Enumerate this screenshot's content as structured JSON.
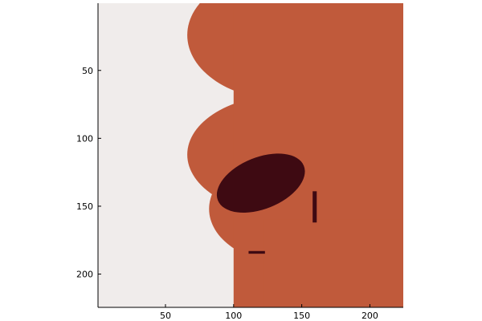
{
  "chart_data": {
    "type": "heatmap",
    "title": "",
    "xlabel": "",
    "ylabel": "",
    "xlim": [
      0.5,
      224.5
    ],
    "ylim": [
      0.5,
      224.5
    ],
    "y_inverted": true,
    "grid": false,
    "x_ticks": [
      {
        "value": 50,
        "label": "50"
      },
      {
        "value": 100,
        "label": "100"
      },
      {
        "value": 150,
        "label": "150"
      },
      {
        "value": 200,
        "label": "200"
      }
    ],
    "y_ticks": [
      {
        "value": 50,
        "label": "50"
      },
      {
        "value": 100,
        "label": "100"
      },
      {
        "value": 150,
        "label": "150"
      },
      {
        "value": 200,
        "label": "200"
      }
    ],
    "colors": {
      "background_region": "#f0eceb",
      "body_region": "#c05a3b",
      "dark_region": "#3e0a12"
    },
    "regions": [
      {
        "id": "lobe-top",
        "shape": "ellipse",
        "color": "body_region",
        "cx": 138,
        "cy": 24,
        "rx": 72,
        "ry": 48
      },
      {
        "id": "lobe-middle",
        "shape": "ellipse",
        "color": "body_region",
        "cx": 138,
        "cy": 112,
        "rx": 72,
        "ry": 44
      },
      {
        "id": "lobe-lower",
        "shape": "ellipse",
        "color": "body_region",
        "cx": 140,
        "cy": 152,
        "rx": 58,
        "ry": 40
      },
      {
        "id": "lobe-bottom",
        "shape": "ellipse",
        "color": "body_region",
        "cx": 118,
        "cy": 197,
        "rx": 15,
        "ry": 16
      },
      {
        "id": "right-block",
        "shape": "rect",
        "color": "body_region",
        "x0": 100,
        "x1": 224.5,
        "y0": 0.5,
        "y1": 224.5
      },
      {
        "id": "bottom-block",
        "shape": "rect",
        "color": "body_region",
        "x0": 122,
        "x1": 224.5,
        "y0": 160,
        "y1": 224.5
      },
      {
        "id": "dark-ellipse",
        "shape": "ellipse",
        "color": "dark_region",
        "cx": 120,
        "cy": 133,
        "rx": 34,
        "ry": 19,
        "angle": -22
      },
      {
        "id": "dark-streak",
        "shape": "rect",
        "color": "dark_region",
        "x0": 158,
        "x1": 161,
        "y0": 139,
        "y1": 162
      },
      {
        "id": "dark-dash",
        "shape": "rect",
        "color": "dark_region",
        "x0": 111,
        "x1": 123,
        "y0": 183,
        "y1": 185
      }
    ]
  }
}
